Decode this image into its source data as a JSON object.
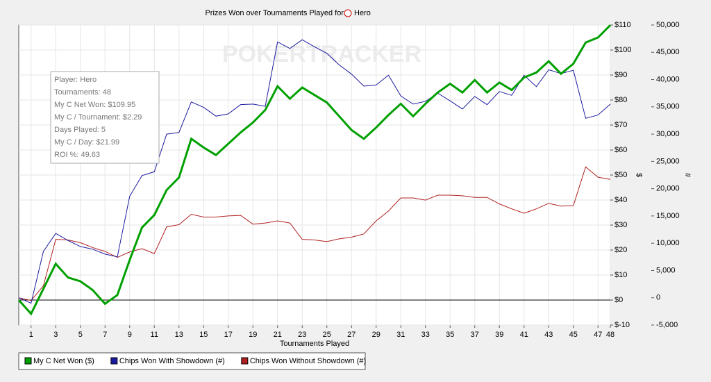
{
  "chart_data": {
    "type": "line",
    "title": "Prizes Won over Tournaments Played for",
    "title_player": "Hero",
    "watermark": "POKERTRACKER",
    "x_label": "Tournaments Played",
    "y_label": "$",
    "y2_label": "#",
    "x": [
      0,
      1,
      2,
      3,
      4,
      5,
      6,
      7,
      8,
      9,
      10,
      11,
      12,
      13,
      14,
      15,
      16,
      17,
      18,
      19,
      20,
      21,
      22,
      23,
      24,
      25,
      26,
      27,
      28,
      29,
      30,
      31,
      32,
      33,
      34,
      35,
      36,
      37,
      38,
      39,
      40,
      41,
      42,
      43,
      44,
      45,
      46,
      47,
      48
    ],
    "xlim": [
      0,
      48
    ],
    "xticks": [
      1,
      3,
      5,
      7,
      9,
      11,
      13,
      15,
      17,
      19,
      21,
      23,
      25,
      27,
      29,
      31,
      33,
      35,
      37,
      39,
      41,
      43,
      45,
      47,
      48
    ],
    "ylim": [
      -10,
      110
    ],
    "yticks": [
      {
        "value": -10,
        "label": "$-10"
      },
      {
        "value": 0,
        "label": "$0"
      },
      {
        "value": 10,
        "label": "$10"
      },
      {
        "value": 20,
        "label": "$20"
      },
      {
        "value": 30,
        "label": "$30"
      },
      {
        "value": 40,
        "label": "$40"
      },
      {
        "value": 50,
        "label": "$50"
      },
      {
        "value": 60,
        "label": "$60"
      },
      {
        "value": 70,
        "label": "$70"
      },
      {
        "value": 80,
        "label": "$80"
      },
      {
        "value": 90,
        "label": "$90"
      },
      {
        "value": 100,
        "label": "$100"
      },
      {
        "value": 110,
        "label": "$110"
      }
    ],
    "y2lim": [
      -5000,
      50000
    ],
    "y2ticks": [
      {
        "value": -5000,
        "label": "-5,000"
      },
      0,
      {
        "value": 5000,
        "label": "5,000"
      },
      {
        "value": 10000,
        "label": "10,000"
      },
      {
        "value": 15000,
        "label": "15,000"
      },
      {
        "value": 20000,
        "label": "20,000"
      },
      {
        "value": 25000,
        "label": "25,000"
      },
      {
        "value": 30000,
        "label": "30,000"
      },
      {
        "value": 35000,
        "label": "35,000"
      },
      {
        "value": 40000,
        "label": "40,000"
      },
      {
        "value": 45000,
        "label": "45,000"
      },
      {
        "value": 50000,
        "label": "50,000"
      }
    ],
    "grid": true,
    "series": [
      {
        "name": "My C Net Won ($)",
        "color": "#00a000",
        "values": [
          0,
          -5.5,
          4.5,
          14.5,
          9,
          7.5,
          4,
          -1.5,
          2,
          16,
          29,
          34,
          44,
          49,
          64.5,
          61,
          58,
          62.5,
          67,
          71,
          76,
          85.5,
          80.5,
          85,
          82,
          79,
          73.5,
          68,
          64.5,
          69,
          74,
          78.5,
          73.5,
          78.5,
          83,
          86.5,
          83,
          88,
          83,
          87,
          84,
          89,
          91,
          95.5,
          90.5,
          94.5,
          103,
          105,
          109.95
        ]
      },
      {
        "name": "Chips Won With Showdown (#)",
        "color": "#1a1aa0",
        "axis": "y2",
        "values": [
          0,
          -1000,
          8500,
          11800,
          10500,
          9400,
          8900,
          8000,
          7500,
          18600,
          22400,
          23100,
          30000,
          30300,
          35900,
          34900,
          33300,
          33700,
          35400,
          35500,
          35100,
          46900,
          45700,
          47300,
          46000,
          44800,
          42700,
          41000,
          38800,
          39000,
          40800,
          37000,
          35500,
          36000,
          37500,
          36100,
          34600,
          36900,
          35400,
          37800,
          37100,
          40800,
          38700,
          41800,
          41100,
          41700,
          32900,
          33500,
          35500
        ]
      },
      {
        "name": "Chips Won Without Showdown (#)",
        "color": "#b02020",
        "axis": "y2",
        "values": [
          0,
          -500,
          2200,
          10700,
          10600,
          10100,
          9200,
          8500,
          7400,
          8400,
          9000,
          8100,
          13000,
          13400,
          15300,
          14800,
          14800,
          15000,
          15100,
          13500,
          13700,
          14100,
          13700,
          10700,
          10600,
          10300,
          10800,
          11100,
          11700,
          14100,
          15900,
          18300,
          18300,
          17900,
          18800,
          18800,
          18700,
          18400,
          18400,
          17200,
          16300,
          15500,
          16300,
          17300,
          16800,
          16900,
          24000,
          22100,
          21700
        ]
      }
    ],
    "tooltip": [
      "Player: Hero",
      "Tournaments: 48",
      "My C Net Won: $109.95",
      "My C / Tournament: $2.29",
      "Days Played: 5",
      "My C / Day: $21.99",
      "ROI %: 49.63"
    ]
  }
}
